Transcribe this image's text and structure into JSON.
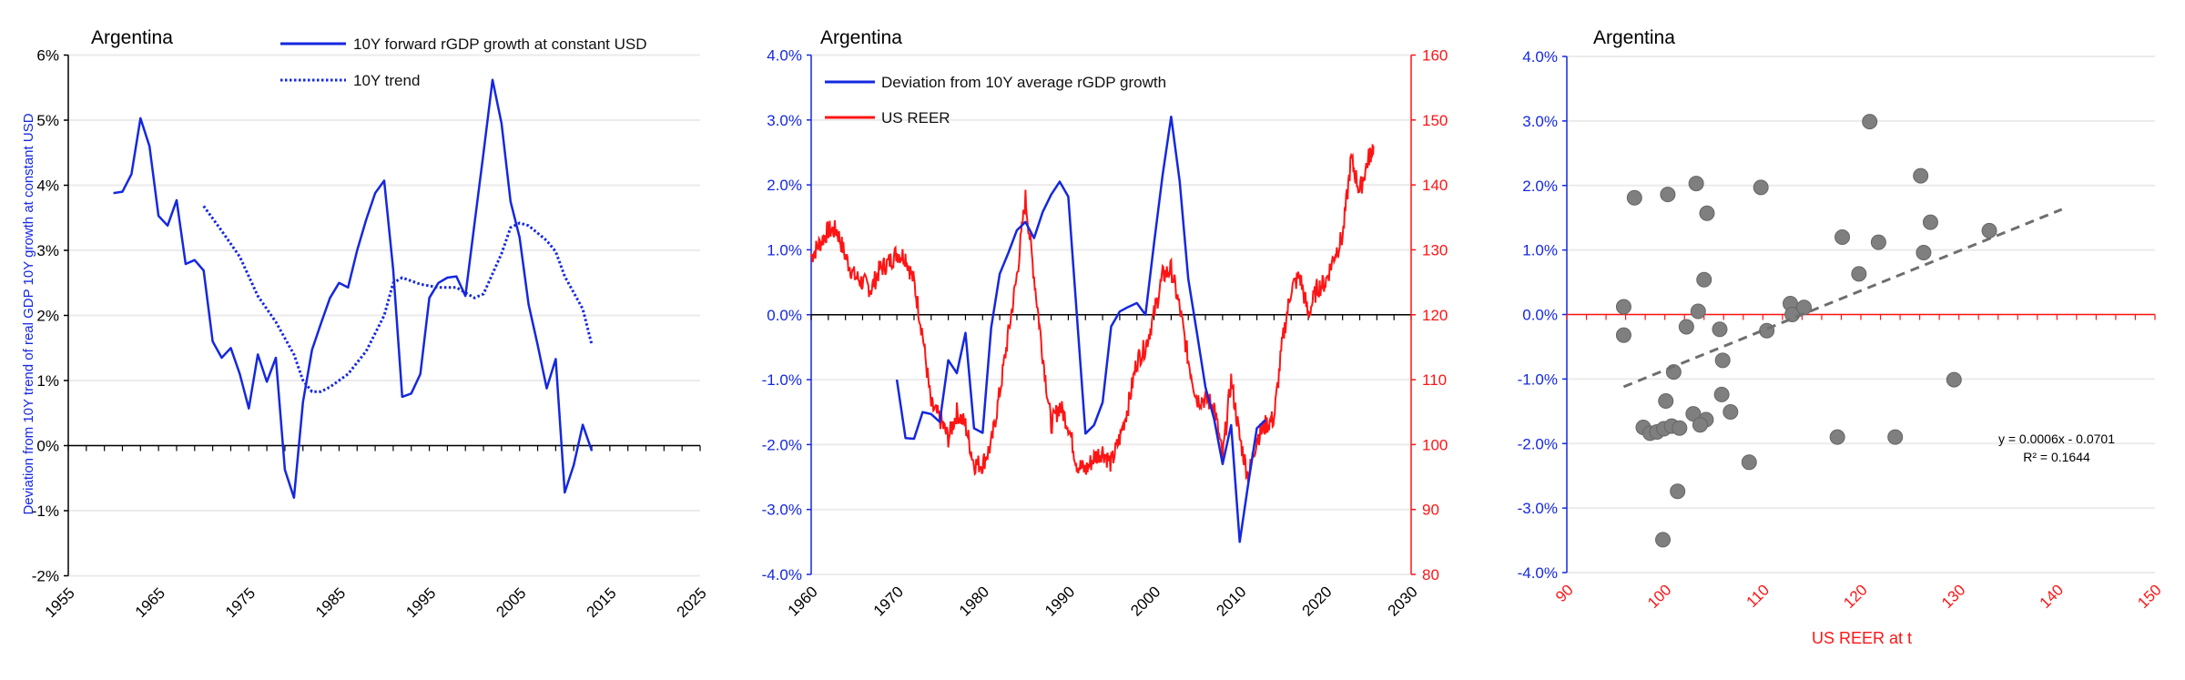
{
  "colors": {
    "blue": "#1428e0",
    "red": "#ff1414",
    "grid": "#ebebeb",
    "dot": "#7f7f7f",
    "trend": "#6e6e6e"
  },
  "chart_data": [
    {
      "type": "line",
      "title": "Argentina",
      "xlim": [
        1955,
        2025
      ],
      "ylim": [
        -2,
        6
      ],
      "x_ticks": [
        "1955",
        "1965",
        "1975",
        "1985",
        "1995",
        "2005",
        "2015",
        "2025"
      ],
      "y_ticks": [
        "-2%",
        "-1%",
        "0%",
        "1%",
        "2%",
        "3%",
        "4%",
        "5%",
        "6%"
      ],
      "legend": "top-right",
      "series": [
        {
          "name": "10Y forward rGDP growth at constant USD",
          "style": "solid",
          "x": [
            1960,
            1961,
            1962,
            1963,
            1964,
            1965,
            1966,
            1967,
            1968,
            1969,
            1970,
            1971,
            1972,
            1973,
            1974,
            1975,
            1976,
            1977,
            1978,
            1979,
            1980,
            1981,
            1982,
            1983,
            1984,
            1985,
            1986,
            1987,
            1988,
            1989,
            1990,
            1991,
            1992,
            1993,
            1994,
            1995,
            1996,
            1997,
            1998,
            1999,
            2000,
            2001,
            2002,
            2003,
            2004,
            2005,
            2006,
            2007,
            2008,
            2009,
            2010,
            2011,
            2012,
            2013
          ],
          "values": [
            3.88,
            3.9,
            4.17,
            5.03,
            4.6,
            3.53,
            3.38,
            3.77,
            2.79,
            2.85,
            2.69,
            1.6,
            1.35,
            1.5,
            1.1,
            0.57,
            1.4,
            0.98,
            1.35,
            -0.37,
            -0.8,
            0.67,
            1.47,
            1.88,
            2.27,
            2.5,
            2.43,
            3.0,
            3.47,
            3.88,
            4.07,
            2.7,
            0.75,
            0.8,
            1.1,
            2.27,
            2.5,
            2.58,
            2.6,
            2.3,
            3.4,
            4.5,
            5.62,
            4.95,
            3.75,
            3.2,
            2.17,
            1.55,
            0.88,
            1.33,
            -0.72,
            -0.3,
            0.32,
            -0.08
          ]
        },
        {
          "name": "10Y trend",
          "style": "dotted",
          "x": [
            1970,
            1972,
            1974,
            1976,
            1978,
            1980,
            1981,
            1982,
            1983,
            1984,
            1986,
            1988,
            1990,
            1991,
            1992,
            1994,
            1996,
            1998,
            2000,
            2001,
            2003,
            2004,
            2005,
            2006,
            2008,
            2009,
            2010,
            2012,
            2013
          ],
          "values": [
            3.68,
            3.3,
            2.9,
            2.3,
            1.9,
            1.4,
            1.0,
            0.83,
            0.83,
            0.9,
            1.1,
            1.45,
            2.0,
            2.5,
            2.58,
            2.48,
            2.43,
            2.43,
            2.27,
            2.33,
            2.95,
            3.35,
            3.42,
            3.38,
            3.15,
            2.98,
            2.6,
            2.1,
            1.55
          ]
        }
      ]
    },
    {
      "type": "line",
      "title": "Argentina",
      "xlim": [
        1960,
        2030
      ],
      "ylim": [
        -4,
        4
      ],
      "y2lim": [
        80,
        160
      ],
      "x_ticks": [
        "1960",
        "1970",
        "1980",
        "1990",
        "2000",
        "2010",
        "2020",
        "2030"
      ],
      "y_ticks": [
        "-4.0%",
        "-3.0%",
        "-2.0%",
        "-1.0%",
        "0.0%",
        "1.0%",
        "2.0%",
        "3.0%",
        "4.0%"
      ],
      "y2_ticks": [
        "80",
        "90",
        "100",
        "110",
        "120",
        "130",
        "140",
        "150",
        "160"
      ],
      "legend": "top-left",
      "series": [
        {
          "name": "Deviation from 10Y average rGDP growth",
          "axis": "left",
          "x": [
            1970,
            1971,
            1972,
            1973,
            1974,
            1975,
            1976,
            1977,
            1978,
            1979,
            1980,
            1981,
            1982,
            1983,
            1984,
            1985,
            1986,
            1987,
            1988,
            1989,
            1990,
            1991,
            1992,
            1993,
            1994,
            1995,
            1996,
            1997,
            1998,
            1999,
            2000,
            2001,
            2002,
            2003,
            2004,
            2005,
            2006,
            2007,
            2008,
            2009,
            2010,
            2011,
            2012,
            2013
          ],
          "values": [
            -1.0,
            -1.9,
            -1.91,
            -1.5,
            -1.53,
            -1.65,
            -0.7,
            -0.9,
            -0.28,
            -1.75,
            -1.82,
            -0.2,
            0.63,
            0.95,
            1.3,
            1.43,
            1.18,
            1.58,
            1.85,
            2.05,
            1.82,
            0.0,
            -1.83,
            -1.7,
            -1.35,
            -0.18,
            0.05,
            0.12,
            0.18,
            0.0,
            1.1,
            2.15,
            3.05,
            2.05,
            0.55,
            -0.27,
            -1.12,
            -1.6,
            -2.3,
            -1.7,
            -3.5,
            -2.6,
            -1.75,
            -1.62
          ]
        },
        {
          "name": "US REER",
          "axis": "right",
          "x": [
            1960,
            1961,
            1962,
            1963,
            1964,
            1965,
            1966,
            1967,
            1968,
            1969,
            1970,
            1971,
            1972,
            1973,
            1974,
            1975,
            1976,
            1977,
            1978,
            1979,
            1980,
            1981,
            1982,
            1983,
            1984,
            1985,
            1986,
            1987,
            1988,
            1989,
            1990,
            1991,
            1992,
            1993,
            1994,
            1995,
            1996,
            1997,
            1998,
            1999,
            2000,
            2001,
            2002,
            2003,
            2004,
            2005,
            2006,
            2007,
            2008,
            2009,
            2010,
            2011,
            2012,
            2013,
            2014,
            2015,
            2016,
            2017,
            2018,
            2019,
            2020,
            2021,
            2022,
            2023,
            2024,
            2025,
            2025.6
          ],
          "values": [
            129,
            131,
            133,
            133,
            129,
            126,
            125,
            124,
            127,
            128,
            129.5,
            129,
            125,
            117,
            106,
            104,
            101,
            105,
            103,
            97,
            97,
            100,
            108,
            117,
            126,
            138,
            126,
            114,
            103,
            106,
            103,
            97,
            96,
            98,
            99,
            97,
            101,
            106,
            113,
            115,
            120,
            126,
            127,
            121,
            113,
            107,
            107,
            106,
            98,
            110,
            101,
            95,
            101,
            103,
            104,
            116,
            124,
            126,
            120,
            124,
            125,
            129,
            132,
            144,
            139,
            144,
            146
          ]
        }
      ]
    },
    {
      "type": "scatter",
      "title": "Argentina",
      "xlabel": "US REER at t",
      "ylabel": "Deviation from 10Y trend of real GDP 10Y growth at constant USD",
      "xlim": [
        90,
        150
      ],
      "ylim": [
        -4,
        4
      ],
      "x_ticks": [
        "90",
        "100",
        "110",
        "120",
        "130",
        "140",
        "150"
      ],
      "y_ticks": [
        "-4.0%",
        "-3.0%",
        "-2.0%",
        "-1.0%",
        "0.0%",
        "1.0%",
        "2.0%",
        "3.0%",
        "4.0%"
      ],
      "points": [
        [
          95.8,
          0.12
        ],
        [
          95.8,
          -0.32
        ],
        [
          96.9,
          1.81
        ],
        [
          100.3,
          1.86
        ],
        [
          103.2,
          2.03
        ],
        [
          109.8,
          1.97
        ],
        [
          104.3,
          1.57
        ],
        [
          104.0,
          0.54
        ],
        [
          103.4,
          0.05
        ],
        [
          102.2,
          -0.19
        ],
        [
          105.6,
          -0.23
        ],
        [
          110.4,
          -0.25
        ],
        [
          105.9,
          -0.71
        ],
        [
          100.9,
          -0.89
        ],
        [
          100.1,
          -1.34
        ],
        [
          105.8,
          -1.24
        ],
        [
          106.7,
          -1.51
        ],
        [
          102.9,
          -1.54
        ],
        [
          104.2,
          -1.63
        ],
        [
          103.6,
          -1.71
        ],
        [
          97.8,
          -1.75
        ],
        [
          98.5,
          -1.84
        ],
        [
          99.2,
          -1.82
        ],
        [
          99.9,
          -1.77
        ],
        [
          100.7,
          -1.73
        ],
        [
          101.5,
          -1.76
        ],
        [
          108.6,
          -2.29
        ],
        [
          101.3,
          -2.74
        ],
        [
          99.8,
          -3.49
        ],
        [
          112.8,
          0.17
        ],
        [
          113.0,
          0.0
        ],
        [
          114.2,
          0.11
        ],
        [
          118.1,
          1.2
        ],
        [
          121.8,
          1.12
        ],
        [
          119.8,
          0.63
        ],
        [
          120.9,
          2.99
        ],
        [
          126.1,
          2.15
        ],
        [
          127.1,
          1.43
        ],
        [
          126.4,
          0.96
        ],
        [
          133.1,
          1.3
        ],
        [
          129.5,
          -1.01
        ],
        [
          117.6,
          -1.9
        ],
        [
          123.5,
          -1.9
        ]
      ],
      "trendline": {
        "x": [
          95.8,
          140.5
        ],
        "y": [
          -1.12,
          1.63
        ],
        "equation": "y = 0.0006x - 0.0701",
        "r2_label": "R² = 0.1644"
      }
    }
  ]
}
